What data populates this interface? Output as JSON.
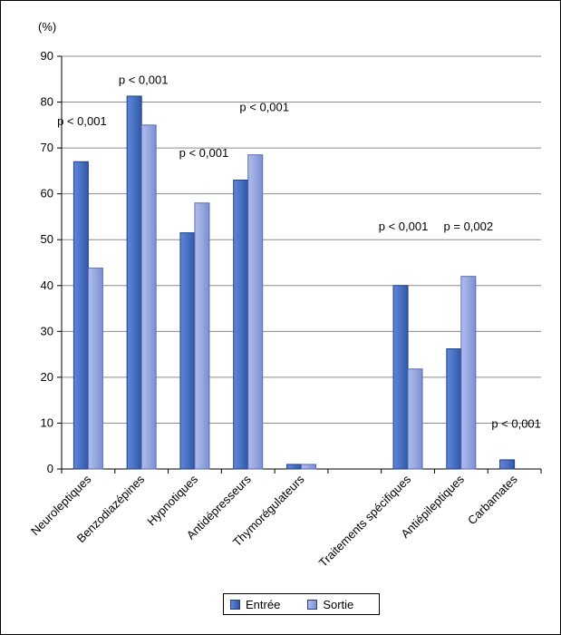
{
  "chart_data": {
    "type": "bar",
    "ylabel": "(%)",
    "ylim": [
      0,
      90
    ],
    "yticks": [
      0,
      10,
      20,
      30,
      40,
      50,
      60,
      70,
      80,
      90
    ],
    "grid": true,
    "legend_position": "bottom",
    "categories": [
      "Neuroleptiques",
      "Benzodiazépines",
      "Hypnotiques",
      "Antidépresseurs",
      "Thymorégulateurs",
      "",
      "Traitements spécifiques",
      "Antiépileptiques",
      "Carbamates"
    ],
    "series": [
      {
        "name": "Entrée",
        "color": "#4a72c4",
        "values": [
          67,
          81.3,
          51.5,
          63,
          1,
          null,
          40,
          26.2,
          2
        ]
      },
      {
        "name": "Sortie",
        "color": "#97a8e0",
        "values": [
          43.8,
          75,
          58,
          68.5,
          1,
          null,
          21.8,
          42,
          null
        ]
      }
    ],
    "annotations": [
      "p < 0,001",
      "p < 0,001",
      "p < 0,001",
      "p < 0,001",
      "p < 0,001",
      "p = 0,002",
      "p < 0,001"
    ]
  }
}
